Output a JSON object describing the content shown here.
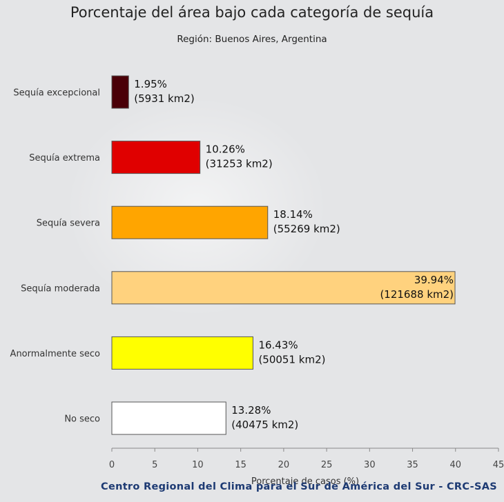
{
  "chart_data": {
    "type": "bar",
    "orientation": "horizontal",
    "title": "Porcentaje del área bajo cada categoría de sequía",
    "subtitle": "Región: Buenos Aires, Argentina",
    "xlabel": "Porcentaje de casos (%)",
    "ylabel": "",
    "xlim": [
      0,
      45
    ],
    "xticks": [
      "0",
      "5",
      "10",
      "15",
      "20",
      "25",
      "30",
      "35",
      "40",
      "45"
    ],
    "grid": false,
    "categories": [
      "Sequía excepcional",
      "Sequía extrema",
      "Sequía severa",
      "Sequía moderada",
      "Anormalmente seco",
      "No seco"
    ],
    "values": [
      1.95,
      10.26,
      18.14,
      39.94,
      16.43,
      13.28
    ],
    "labels_pct": [
      "1.95%",
      "10.26%",
      "18.14%",
      "39.94%",
      "16.43%",
      "13.28%"
    ],
    "labels_area": [
      "(5931 km2)",
      "(31253 km2)",
      "(55269 km2)",
      "(121688 km2)",
      "(50051 km2)",
      "(40475 km2)"
    ],
    "colors": [
      "#4a0008",
      "#e00000",
      "#ffa500",
      "#ffd27e",
      "#ffff00",
      "#ffffff"
    ]
  },
  "footer": "Centro Regional del Clima para el Sur de América del Sur - CRC-SAS"
}
